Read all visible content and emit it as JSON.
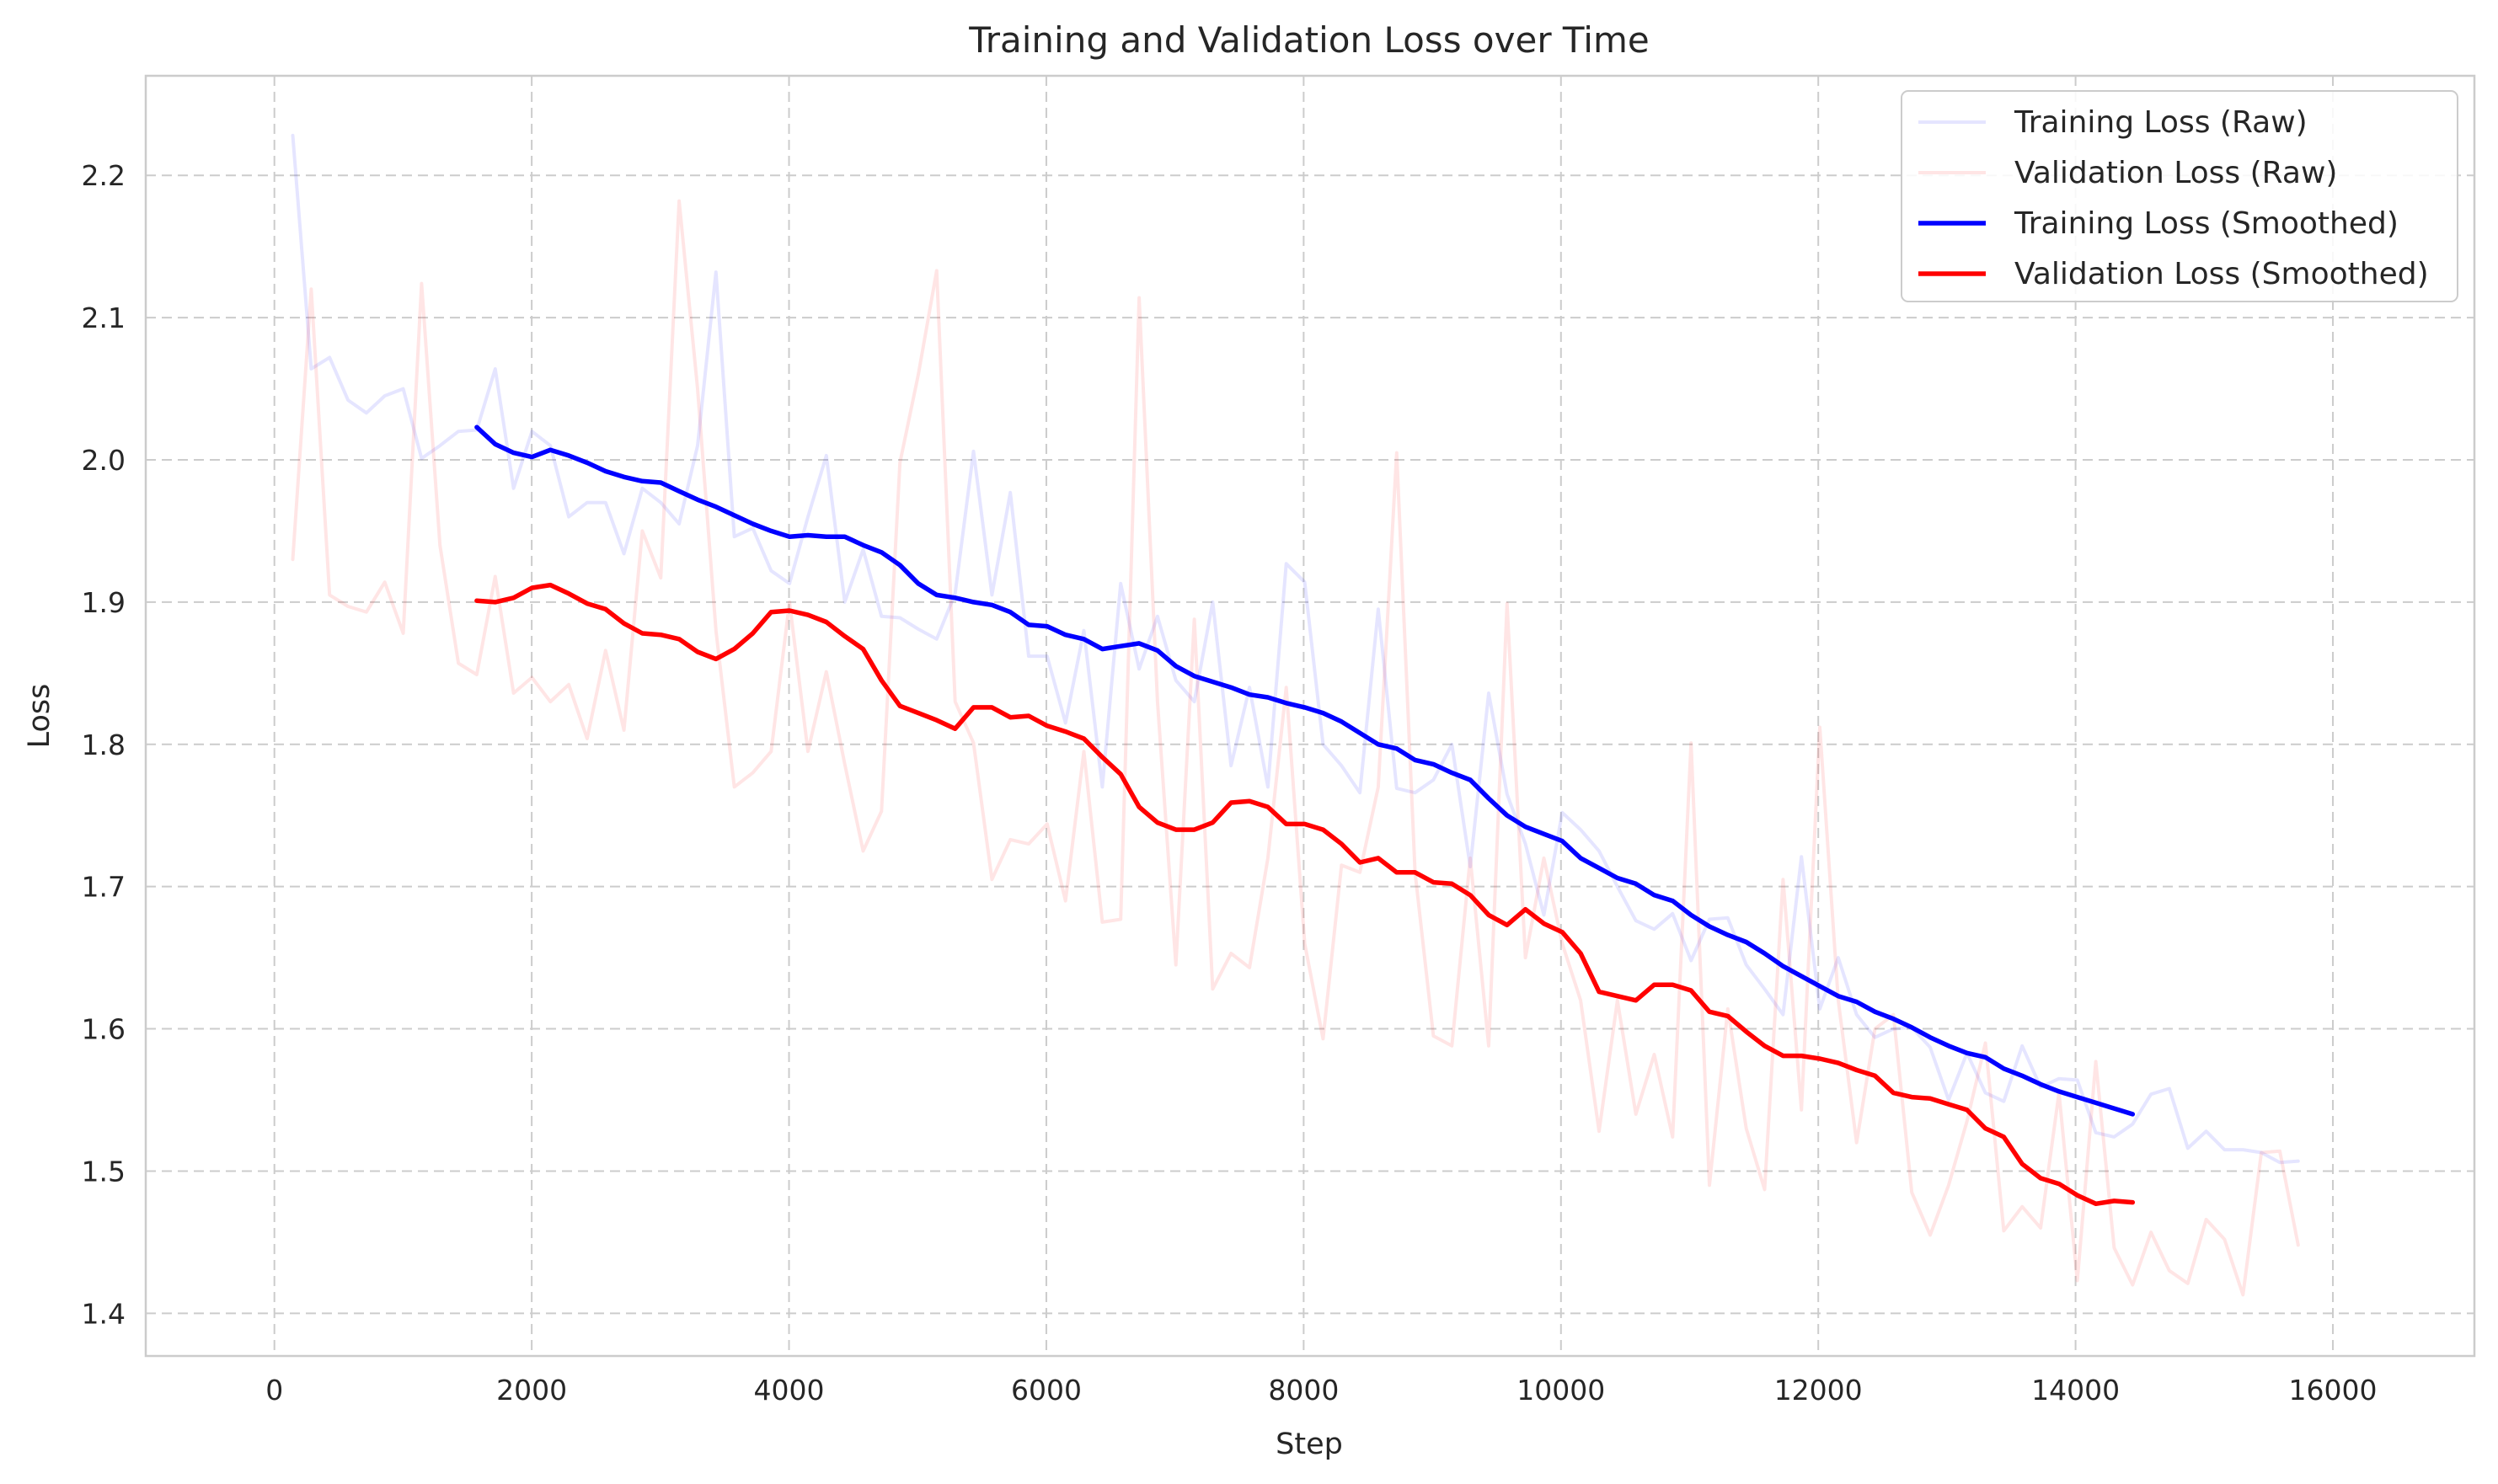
{
  "chart_data": {
    "type": "line",
    "title": "Training and Validation Loss over Time",
    "xlabel": "Step",
    "ylabel": "Loss",
    "xlim": [
      -1000,
      17100
    ],
    "ylim": [
      1.37,
      2.27
    ],
    "xticks": [
      0,
      2000,
      4000,
      6000,
      8000,
      10000,
      12000,
      14000,
      16000
    ],
    "yticks": [
      1.4,
      1.5,
      1.6,
      1.7,
      1.8,
      1.9,
      2.0,
      2.1,
      2.2
    ],
    "ytick_labels": [
      "1.4",
      "1.5",
      "1.6",
      "1.7",
      "1.8",
      "1.9",
      "2.0",
      "2.1",
      "2.2"
    ],
    "grid": true,
    "legend_position": "top-right",
    "series": [
      {
        "name": "Training Loss (Raw)",
        "color": "#0000ff",
        "opacity": 0.1,
        "width": 4,
        "x": [
          143,
          286,
          429,
          572,
          715,
          858,
          1001,
          1144,
          1287,
          1430,
          1573,
          1716,
          1859,
          2002,
          2145,
          2288,
          2431,
          2574,
          2717,
          2860,
          3003,
          3146,
          3289,
          3432,
          3575,
          3718,
          3861,
          4004,
          4147,
          4290,
          4433,
          4576,
          4719,
          4862,
          5005,
          5148,
          5291,
          5434,
          5577,
          5720,
          5863,
          6006,
          6149,
          6292,
          6435,
          6578,
          6721,
          6864,
          7007,
          7150,
          7293,
          7436,
          7579,
          7722,
          7865,
          8008,
          8151,
          8294,
          8437,
          8580,
          8723,
          8866,
          9009,
          9152,
          9295,
          9438,
          9581,
          9724,
          9867,
          10010,
          10153,
          10296,
          10439,
          10582,
          10725,
          10868,
          11011,
          11154,
          11297,
          11440,
          11583,
          11726,
          11869,
          12012,
          12155,
          12298,
          12441,
          12584,
          12727,
          12870,
          13013,
          13156,
          13299,
          13442,
          13585,
          13728,
          13871,
          14014,
          14157,
          14300,
          14443,
          14586,
          14729,
          14872,
          15015,
          15158,
          15301,
          15444,
          15587,
          15730
        ],
        "values": [
          2.228,
          2.064,
          2.072,
          2.042,
          2.033,
          2.045,
          2.05,
          2.001,
          2.01,
          2.02,
          2.021,
          2.064,
          1.98,
          2.02,
          2.01,
          1.96,
          1.97,
          1.97,
          1.934,
          1.98,
          1.97,
          1.955,
          2.01,
          2.132,
          1.946,
          1.952,
          1.922,
          1.913,
          1.96,
          2.003,
          1.9,
          1.937,
          1.89,
          1.889,
          1.881,
          1.874,
          1.906,
          2.006,
          1.905,
          1.977,
          1.862,
          1.862,
          1.815,
          1.88,
          1.77,
          1.913,
          1.853,
          1.89,
          1.845,
          1.83,
          1.9,
          1.785,
          1.84,
          1.77,
          1.927,
          1.914,
          1.8,
          1.785,
          1.766,
          1.895,
          1.769,
          1.766,
          1.775,
          1.8,
          1.714,
          1.836,
          1.765,
          1.73,
          1.68,
          1.752,
          1.74,
          1.725,
          1.7,
          1.676,
          1.67,
          1.681,
          1.648,
          1.677,
          1.678,
          1.645,
          1.628,
          1.61,
          1.721,
          1.614,
          1.65,
          1.61,
          1.594,
          1.6,
          1.601,
          1.587,
          1.55,
          1.583,
          1.555,
          1.549,
          1.588,
          1.559,
          1.565,
          1.564,
          1.527,
          1.524,
          1.533,
          1.554,
          1.558,
          1.516,
          1.528,
          1.515,
          1.515,
          1.513,
          1.506,
          1.507
        ]
      },
      {
        "name": "Validation Loss (Raw)",
        "color": "#ff0000",
        "opacity": 0.1,
        "width": 4,
        "x": [
          143,
          286,
          429,
          572,
          715,
          858,
          1001,
          1144,
          1287,
          1430,
          1573,
          1716,
          1859,
          2002,
          2145,
          2288,
          2431,
          2574,
          2717,
          2860,
          3003,
          3146,
          3289,
          3432,
          3575,
          3718,
          3861,
          4004,
          4147,
          4290,
          4433,
          4576,
          4719,
          4862,
          5005,
          5148,
          5291,
          5434,
          5577,
          5720,
          5863,
          6006,
          6149,
          6292,
          6435,
          6578,
          6721,
          6864,
          7007,
          7150,
          7293,
          7436,
          7579,
          7722,
          7865,
          8008,
          8151,
          8294,
          8437,
          8580,
          8723,
          8866,
          9009,
          9152,
          9295,
          9438,
          9581,
          9724,
          9867,
          10010,
          10153,
          10296,
          10439,
          10582,
          10725,
          10868,
          11011,
          11154,
          11297,
          11440,
          11583,
          11726,
          11869,
          12012,
          12155,
          12298,
          12441,
          12584,
          12727,
          12870,
          13013,
          13156,
          13299,
          13442,
          13585,
          13728,
          13871,
          14014,
          14157,
          14300,
          14443,
          14586,
          14729,
          14872,
          15015,
          15158,
          15301,
          15444,
          15587,
          15730
        ],
        "values": [
          1.93,
          2.12,
          1.905,
          1.897,
          1.893,
          1.914,
          1.878,
          2.124,
          1.94,
          1.857,
          1.849,
          1.918,
          1.836,
          1.847,
          1.83,
          1.842,
          1.804,
          1.866,
          1.81,
          1.95,
          1.917,
          2.182,
          2.05,
          1.88,
          1.77,
          1.78,
          1.795,
          1.9,
          1.795,
          1.851,
          1.786,
          1.725,
          1.753,
          1.998,
          2.06,
          2.133,
          1.83,
          1.801,
          1.705,
          1.733,
          1.73,
          1.744,
          1.69,
          1.795,
          1.675,
          1.677,
          2.114,
          1.83,
          1.645,
          1.888,
          1.628,
          1.653,
          1.643,
          1.72,
          1.84,
          1.66,
          1.593,
          1.715,
          1.71,
          1.77,
          2.005,
          1.71,
          1.595,
          1.588,
          1.72,
          1.588,
          1.899,
          1.65,
          1.72,
          1.66,
          1.62,
          1.528,
          1.62,
          1.54,
          1.582,
          1.524,
          1.801,
          1.49,
          1.614,
          1.53,
          1.487,
          1.705,
          1.543,
          1.812,
          1.62,
          1.52,
          1.6,
          1.61,
          1.485,
          1.455,
          1.49,
          1.535,
          1.59,
          1.458,
          1.475,
          1.46,
          1.555,
          1.423,
          1.577,
          1.446,
          1.42,
          1.457,
          1.43,
          1.421,
          1.466,
          1.452,
          1.413,
          1.513,
          1.514,
          1.448
        ]
      },
      {
        "name": "Training Loss (Smoothed)",
        "color": "#0000ff",
        "opacity": 1,
        "width": 5.5,
        "x": [
          1573,
          1716,
          1859,
          2002,
          2145,
          2288,
          2431,
          2574,
          2717,
          2860,
          3003,
          3146,
          3289,
          3432,
          3575,
          3718,
          3861,
          4004,
          4147,
          4290,
          4433,
          4576,
          4719,
          4862,
          5005,
          5148,
          5291,
          5434,
          5577,
          5720,
          5863,
          6006,
          6149,
          6292,
          6435,
          6578,
          6721,
          6864,
          7007,
          7150,
          7293,
          7436,
          7579,
          7722,
          7865,
          8008,
          8151,
          8294,
          8437,
          8580,
          8723,
          8866,
          9009,
          9152,
          9295,
          9438,
          9581,
          9724,
          9867,
          10010,
          10153,
          10296,
          10439,
          10582,
          10725,
          10868,
          11011,
          11154,
          11297,
          11440,
          11583,
          11726,
          11869,
          12012,
          12155,
          12298,
          12441,
          12584,
          12727,
          12870,
          13013,
          13156,
          13299,
          13442,
          13585,
          13728,
          13871,
          14014,
          14157,
          14300,
          14443
        ],
        "values": [
          2.023,
          2.011,
          2.005,
          2.002,
          2.007,
          2.003,
          1.998,
          1.992,
          1.988,
          1.985,
          1.984,
          1.978,
          1.972,
          1.967,
          1.961,
          1.955,
          1.95,
          1.946,
          1.947,
          1.946,
          1.946,
          1.94,
          1.935,
          1.926,
          1.913,
          1.905,
          1.903,
          1.9,
          1.898,
          1.893,
          1.884,
          1.883,
          1.877,
          1.874,
          1.867,
          1.869,
          1.871,
          1.866,
          1.855,
          1.848,
          1.844,
          1.84,
          1.835,
          1.833,
          1.829,
          1.826,
          1.822,
          1.816,
          1.808,
          1.8,
          1.797,
          1.789,
          1.786,
          1.78,
          1.775,
          1.762,
          1.75,
          1.742,
          1.737,
          1.732,
          1.72,
          1.713,
          1.706,
          1.702,
          1.694,
          1.69,
          1.68,
          1.672,
          1.666,
          1.661,
          1.653,
          1.644,
          1.637,
          1.63,
          1.623,
          1.619,
          1.612,
          1.607,
          1.601,
          1.594,
          1.588,
          1.583,
          1.58,
          1.572,
          1.567,
          1.561,
          1.556,
          1.552,
          1.548,
          1.544,
          1.54
        ]
      },
      {
        "name": "Validation Loss (Smoothed)",
        "color": "#ff0000",
        "opacity": 1,
        "width": 5.5,
        "x": [
          1573,
          1716,
          1859,
          2002,
          2145,
          2288,
          2431,
          2574,
          2717,
          2860,
          3003,
          3146,
          3289,
          3432,
          3575,
          3718,
          3861,
          4004,
          4147,
          4290,
          4433,
          4576,
          4719,
          4862,
          5005,
          5148,
          5291,
          5434,
          5577,
          5720,
          5863,
          6006,
          6149,
          6292,
          6435,
          6578,
          6721,
          6864,
          7007,
          7150,
          7293,
          7436,
          7579,
          7722,
          7865,
          8008,
          8151,
          8294,
          8437,
          8580,
          8723,
          8866,
          9009,
          9152,
          9295,
          9438,
          9581,
          9724,
          9867,
          10010,
          10153,
          10296,
          10439,
          10582,
          10725,
          10868,
          11011,
          11154,
          11297,
          11440,
          11583,
          11726,
          11869,
          12012,
          12155,
          12298,
          12441,
          12584,
          12727,
          12870,
          13013,
          13156,
          13299,
          13442,
          13585,
          13728,
          13871,
          14014,
          14157,
          14300,
          14443
        ],
        "values": [
          1.901,
          1.9,
          1.903,
          1.91,
          1.912,
          1.906,
          1.899,
          1.895,
          1.885,
          1.878,
          1.877,
          1.874,
          1.865,
          1.86,
          1.867,
          1.878,
          1.893,
          1.894,
          1.891,
          1.886,
          1.876,
          1.867,
          1.845,
          1.827,
          1.822,
          1.817,
          1.811,
          1.826,
          1.826,
          1.819,
          1.82,
          1.813,
          1.809,
          1.804,
          1.791,
          1.779,
          1.756,
          1.745,
          1.74,
          1.74,
          1.745,
          1.759,
          1.76,
          1.756,
          1.744,
          1.744,
          1.74,
          1.73,
          1.717,
          1.72,
          1.71,
          1.71,
          1.703,
          1.702,
          1.694,
          1.68,
          1.673,
          1.684,
          1.674,
          1.668,
          1.653,
          1.626,
          1.623,
          1.62,
          1.631,
          1.631,
          1.627,
          1.612,
          1.609,
          1.598,
          1.588,
          1.581,
          1.581,
          1.579,
          1.576,
          1.571,
          1.567,
          1.555,
          1.552,
          1.551,
          1.547,
          1.543,
          1.53,
          1.524,
          1.505,
          1.495,
          1.491,
          1.483,
          1.477,
          1.479,
          1.478
        ]
      }
    ]
  }
}
